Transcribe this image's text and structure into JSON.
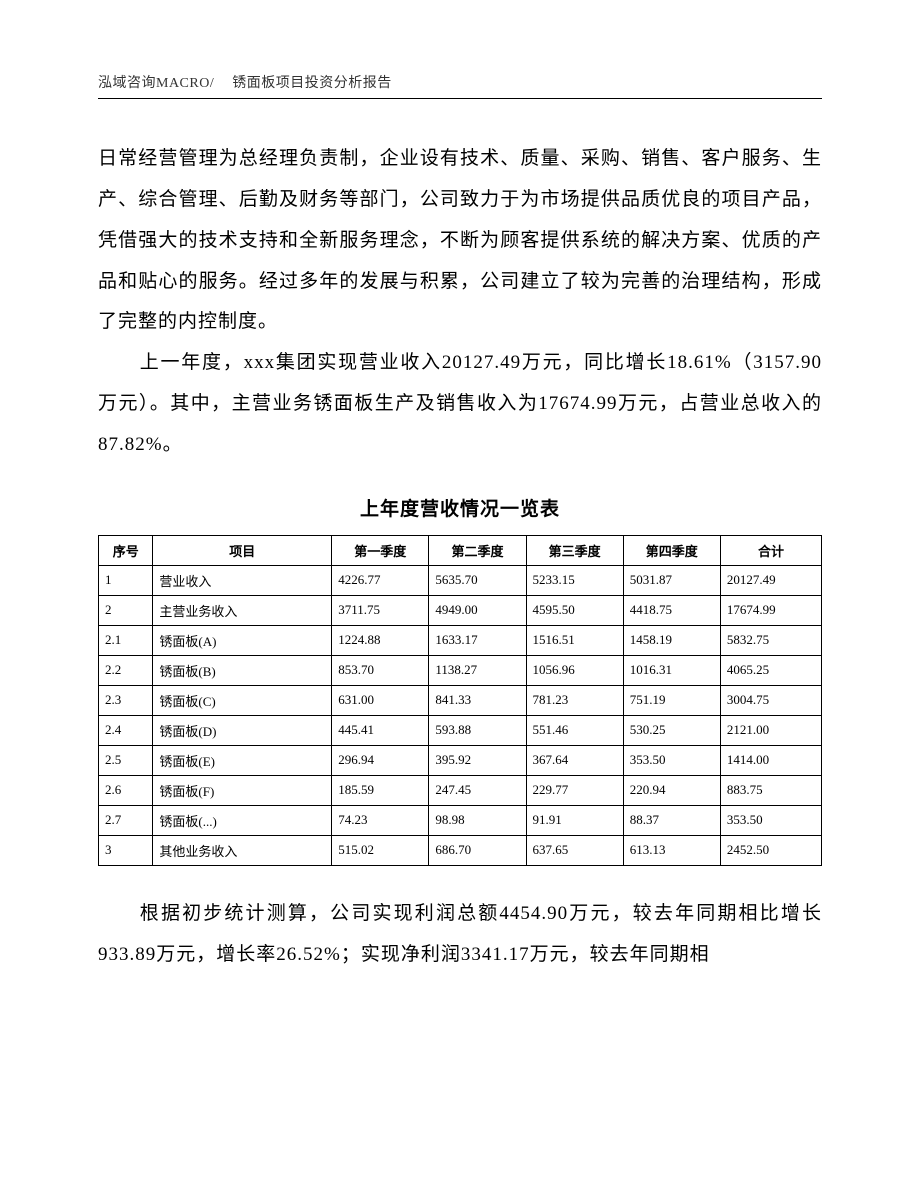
{
  "header": {
    "left": "泓域咨询MACRO/",
    "right": "锈面板项目投资分析报告"
  },
  "paragraphs": {
    "p1": "日常经营管理为总经理负责制，企业设有技术、质量、采购、销售、客户服务、生产、综合管理、后勤及财务等部门，公司致力于为市场提供品质优良的项目产品，凭借强大的技术支持和全新服务理念，不断为顾客提供系统的解决方案、优质的产品和贴心的服务。经过多年的发展与积累，公司建立了较为完善的治理结构，形成了完整的内控制度。",
    "p2": "上一年度，xxx集团实现营业收入20127.49万元，同比增长18.61%（3157.90万元）。其中，主营业务锈面板生产及销售收入为17674.99万元，占营业总收入的87.82%。",
    "p3": "根据初步统计测算，公司实现利润总额4454.90万元，较去年同期相比增长933.89万元，增长率26.52%；实现净利润3341.17万元，较去年同期相"
  },
  "table": {
    "title": "上年度营收情况一览表",
    "columns": [
      "序号",
      "项目",
      "第一季度",
      "第二季度",
      "第三季度",
      "第四季度",
      "合计"
    ],
    "rows": [
      [
        "1",
        "营业收入",
        "4226.77",
        "5635.70",
        "5233.15",
        "5031.87",
        "20127.49"
      ],
      [
        "2",
        "主营业务收入",
        "3711.75",
        "4949.00",
        "4595.50",
        "4418.75",
        "17674.99"
      ],
      [
        "2.1",
        "锈面板(A)",
        "1224.88",
        "1633.17",
        "1516.51",
        "1458.19",
        "5832.75"
      ],
      [
        "2.2",
        "锈面板(B)",
        "853.70",
        "1138.27",
        "1056.96",
        "1016.31",
        "4065.25"
      ],
      [
        "2.3",
        "锈面板(C)",
        "631.00",
        "841.33",
        "781.23",
        "751.19",
        "3004.75"
      ],
      [
        "2.4",
        "锈面板(D)",
        "445.41",
        "593.88",
        "551.46",
        "530.25",
        "2121.00"
      ],
      [
        "2.5",
        "锈面板(E)",
        "296.94",
        "395.92",
        "367.64",
        "353.50",
        "1414.00"
      ],
      [
        "2.6",
        "锈面板(F)",
        "185.59",
        "247.45",
        "229.77",
        "220.94",
        "883.75"
      ],
      [
        "2.7",
        "锈面板(...)",
        "74.23",
        "98.98",
        "91.91",
        "88.37",
        "353.50"
      ],
      [
        "3",
        "其他业务收入",
        "515.02",
        "686.70",
        "637.65",
        "613.13",
        "2452.50"
      ]
    ],
    "style": {
      "type": "table",
      "border_color": "#000000",
      "header_fontweight": "bold",
      "cell_fontsize": 13,
      "body_fontsize": 19,
      "background_color": "#ffffff",
      "col_widths_pct": [
        7,
        23,
        12.5,
        12.5,
        12.5,
        12.5,
        13
      ],
      "col_align": [
        "left",
        "left",
        "left",
        "left",
        "left",
        "left",
        "left"
      ]
    }
  }
}
